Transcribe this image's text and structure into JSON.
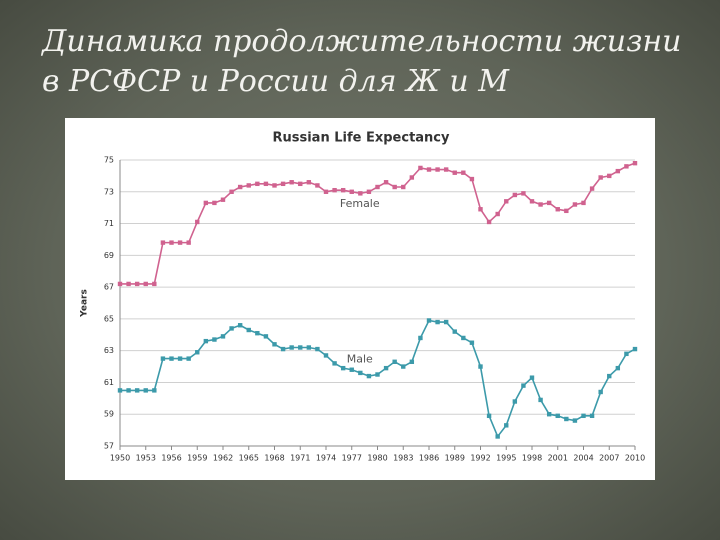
{
  "slide_title": [
    "Динамика продолжительности жизни",
    "в РСФСР и России для Ж и М"
  ],
  "chart_data": {
    "type": "line",
    "title": "Russian Life Expectancy",
    "y_label": "Years",
    "x": [
      1950,
      1951,
      1952,
      1953,
      1954,
      1955,
      1956,
      1957,
      1958,
      1959,
      1960,
      1961,
      1962,
      1963,
      1964,
      1965,
      1966,
      1967,
      1968,
      1969,
      1970,
      1971,
      1972,
      1973,
      1974,
      1975,
      1976,
      1977,
      1978,
      1979,
      1980,
      1981,
      1982,
      1983,
      1984,
      1985,
      1986,
      1987,
      1988,
      1989,
      1990,
      1991,
      1992,
      1993,
      1994,
      1995,
      1996,
      1997,
      1998,
      1999,
      2000,
      2001,
      2002,
      2003,
      2004,
      2005,
      2006,
      2007,
      2008,
      2009,
      2010
    ],
    "series": [
      {
        "name": "Female",
        "color": "#d0628f",
        "values": [
          67.2,
          67.2,
          67.2,
          67.2,
          67.2,
          69.8,
          69.8,
          69.8,
          69.8,
          71.1,
          72.3,
          72.3,
          72.5,
          73.0,
          73.3,
          73.4,
          73.5,
          73.5,
          73.4,
          73.5,
          73.6,
          73.5,
          73.6,
          73.4,
          73.0,
          73.1,
          73.1,
          73.0,
          72.9,
          73.0,
          73.3,
          73.6,
          73.3,
          73.3,
          73.9,
          74.5,
          74.4,
          74.4,
          74.4,
          74.2,
          74.2,
          73.8,
          71.9,
          71.1,
          71.6,
          72.4,
          72.8,
          72.9,
          72.4,
          72.2,
          72.3,
          71.9,
          71.8,
          72.2,
          72.3,
          73.2,
          73.9,
          74.0,
          74.3,
          74.6,
          74.8
        ]
      },
      {
        "name": "Male",
        "color": "#3c9aaa",
        "values": [
          60.5,
          60.5,
          60.5,
          60.5,
          60.5,
          62.5,
          62.5,
          62.5,
          62.5,
          62.9,
          63.6,
          63.7,
          63.9,
          64.4,
          64.6,
          64.3,
          64.1,
          63.9,
          63.4,
          63.1,
          63.2,
          63.2,
          63.2,
          63.1,
          62.7,
          62.2,
          61.9,
          61.8,
          61.6,
          61.4,
          61.5,
          61.9,
          62.3,
          62.0,
          62.3,
          63.8,
          64.9,
          64.8,
          64.8,
          64.2,
          63.8,
          63.5,
          62.0,
          58.9,
          57.6,
          58.3,
          59.8,
          60.8,
          61.3,
          59.9,
          59.0,
          58.9,
          58.7,
          58.6,
          58.9,
          58.9,
          60.4,
          61.4,
          61.9,
          62.8,
          63.1
        ]
      }
    ],
    "xlim": [
      1950,
      2010
    ],
    "xticks": [
      1950,
      1953,
      1956,
      1959,
      1962,
      1965,
      1968,
      1971,
      1974,
      1977,
      1980,
      1983,
      1986,
      1989,
      1992,
      1995,
      1998,
      2001,
      2004,
      2007,
      2010
    ],
    "ylim": [
      57,
      75
    ],
    "yticks": [
      57,
      59,
      61,
      63,
      65,
      67,
      69,
      71,
      73,
      75
    ],
    "grid": true
  }
}
